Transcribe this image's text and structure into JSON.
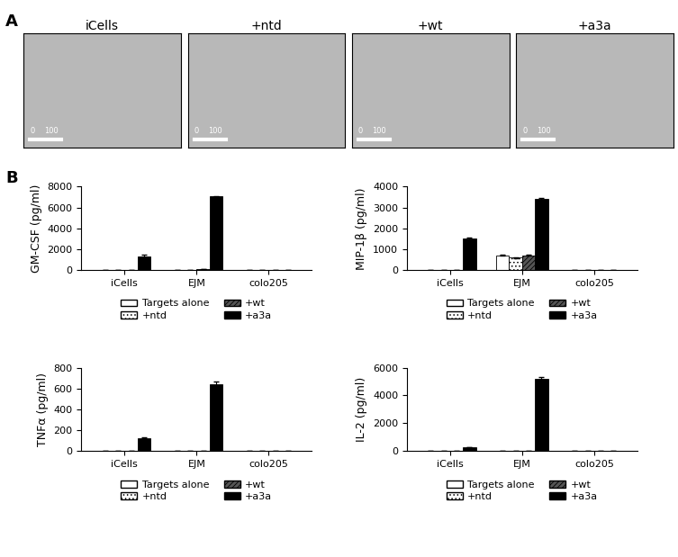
{
  "panel_labels": [
    "A",
    "B"
  ],
  "images": [
    {
      "title": "iCells",
      "scale_bar": [
        "0",
        "100"
      ]
    },
    {
      "title": "+ntd",
      "scale_bar": [
        "0",
        "100"
      ]
    },
    {
      "title": "+wt",
      "scale_bar": [
        "0",
        "100"
      ]
    },
    {
      "title": "+a3a",
      "scale_bar": [
        "0",
        "100"
      ]
    }
  ],
  "chart_data": [
    {
      "type": "bar",
      "y_label": "GM-CSF (pg/ml)",
      "categories": [
        "iCells",
        "EJM",
        "colo205"
      ],
      "ylim": [
        0,
        8000
      ],
      "yticks": [
        0,
        2000,
        4000,
        6000,
        8000
      ],
      "legend": "below",
      "series": [
        {
          "name": "Targets alone",
          "color": "#ffffff",
          "values": [
            0,
            0,
            0
          ],
          "errors": [
            0,
            0,
            0
          ]
        },
        {
          "name": "+ntd",
          "color": "#ffffff",
          "values": [
            0,
            0,
            0
          ],
          "errors": [
            0,
            0,
            0
          ]
        },
        {
          "name": "+wt",
          "color": "#555555",
          "values": [
            0,
            100,
            0
          ],
          "errors": [
            0,
            10,
            0
          ]
        },
        {
          "name": "+a3a",
          "color": "#000000",
          "values": [
            1350,
            7050,
            0
          ],
          "errors": [
            100,
            50,
            0
          ]
        }
      ]
    },
    {
      "type": "bar",
      "y_label": "MIP-1β (pg/ml)",
      "categories": [
        "iCells",
        "EJM",
        "colo205"
      ],
      "ylim": [
        0,
        4000
      ],
      "yticks": [
        0,
        1000,
        2000,
        3000,
        4000
      ],
      "legend": "below",
      "series": [
        {
          "name": "Targets alone",
          "color": "#ffffff",
          "values": [
            0,
            720,
            0
          ],
          "errors": [
            0,
            40,
            0
          ]
        },
        {
          "name": "+ntd",
          "color": "#ffffff",
          "values": [
            0,
            600,
            0
          ],
          "errors": [
            0,
            30,
            0
          ]
        },
        {
          "name": "+wt",
          "color": "#555555",
          "values": [
            0,
            720,
            0
          ],
          "errors": [
            0,
            30,
            0
          ]
        },
        {
          "name": "+a3a",
          "color": "#000000",
          "values": [
            1500,
            3400,
            20
          ],
          "errors": [
            50,
            50,
            5
          ]
        }
      ]
    },
    {
      "type": "bar",
      "y_label": "TNFα (pg/ml)",
      "categories": [
        "iCells",
        "EJM",
        "colo205"
      ],
      "ylim": [
        0,
        800
      ],
      "yticks": [
        0,
        200,
        400,
        600,
        800
      ],
      "legend": "below",
      "series": [
        {
          "name": "Targets alone",
          "color": "#ffffff",
          "values": [
            0,
            0,
            0
          ],
          "errors": [
            0,
            0,
            0
          ]
        },
        {
          "name": "+ntd",
          "color": "#ffffff",
          "values": [
            0,
            0,
            0
          ],
          "errors": [
            0,
            0,
            0
          ]
        },
        {
          "name": "+wt",
          "color": "#555555",
          "values": [
            0,
            5,
            0
          ],
          "errors": [
            0,
            1,
            0
          ]
        },
        {
          "name": "+a3a",
          "color": "#000000",
          "values": [
            125,
            645,
            0
          ],
          "errors": [
            8,
            20,
            0
          ]
        }
      ]
    },
    {
      "type": "bar",
      "y_label": "IL-2 (pg/ml)",
      "categories": [
        "iCells",
        "EJM",
        "colo205"
      ],
      "ylim": [
        0,
        6000
      ],
      "yticks": [
        0,
        2000,
        4000,
        6000
      ],
      "legend": "below",
      "series": [
        {
          "name": "Targets alone",
          "color": "#ffffff",
          "values": [
            0,
            0,
            0
          ],
          "errors": [
            0,
            0,
            0
          ]
        },
        {
          "name": "+ntd",
          "color": "#ffffff",
          "values": [
            0,
            0,
            0
          ],
          "errors": [
            0,
            0,
            0
          ]
        },
        {
          "name": "+wt",
          "color": "#555555",
          "values": [
            0,
            30,
            0
          ],
          "errors": [
            0,
            5,
            0
          ]
        },
        {
          "name": "+a3a",
          "color": "#000000",
          "values": [
            280,
            5200,
            0
          ],
          "errors": [
            20,
            100,
            0
          ]
        }
      ]
    }
  ]
}
